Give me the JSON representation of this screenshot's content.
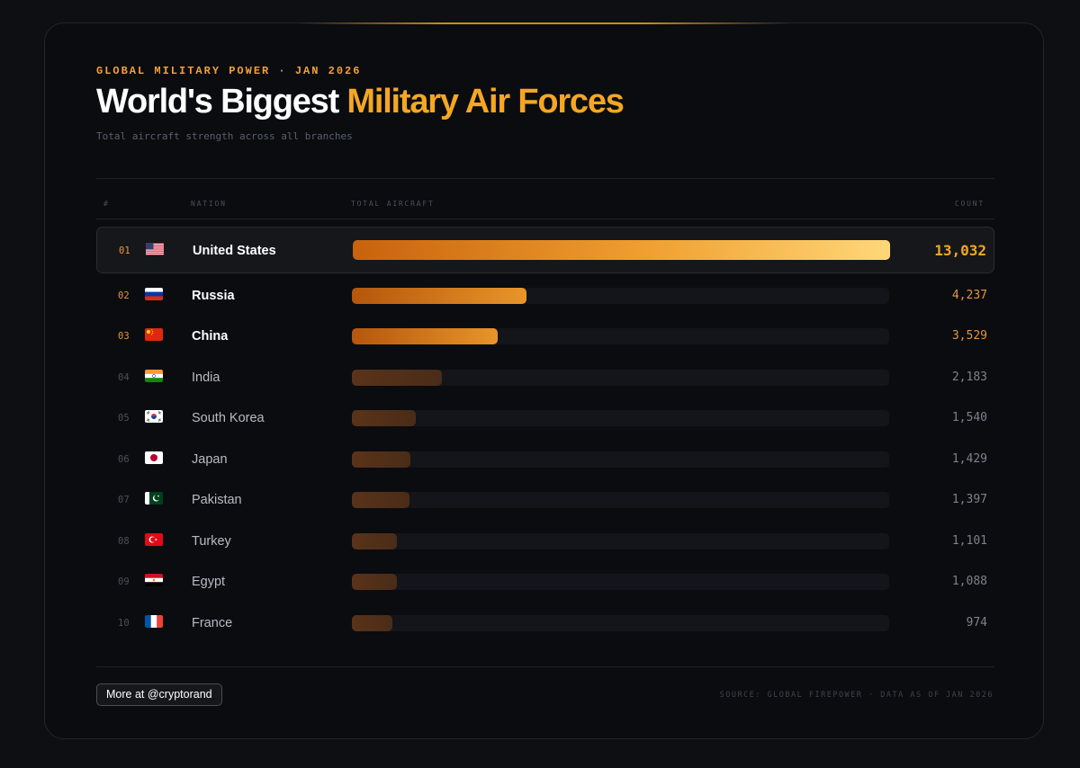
{
  "header": {
    "eyebrow": "GLOBAL MILITARY POWER · JAN 2026",
    "title_main": "World's Biggest",
    "title_accent": "Military Air Forces",
    "subtitle": "Total aircraft strength across all branches"
  },
  "table_headers": {
    "rank": "#",
    "nation": "NATION",
    "total": "TOTAL AIRCRAFT",
    "count": "COUNT"
  },
  "footer": {
    "button_label": "More at @cryptorand",
    "source": "SOURCE: GLOBAL FIREPOWER · DATA AS OF JAN 2026"
  },
  "colors": {
    "accent": "#f5a623",
    "accent_deep": "#c8620d",
    "muted_bar": "#5a3319"
  },
  "chart_data": {
    "type": "bar",
    "orientation": "horizontal",
    "title": "World's Biggest Military Air Forces",
    "subtitle": "Total aircraft strength across all branches",
    "xlabel": "TOTAL AIRCRAFT",
    "ylabel": "NATION",
    "xlim": [
      0,
      13032
    ],
    "rows": [
      {
        "rank": "01",
        "flag": "us-flag-icon",
        "name": "United States",
        "value": 13032,
        "label": "13,032"
      },
      {
        "rank": "02",
        "flag": "russia-flag-icon",
        "name": "Russia",
        "value": 4237,
        "label": "4,237"
      },
      {
        "rank": "03",
        "flag": "china-flag-icon",
        "name": "China",
        "value": 3529,
        "label": "3,529"
      },
      {
        "rank": "04",
        "flag": "india-flag-icon",
        "name": "India",
        "value": 2183,
        "label": "2,183"
      },
      {
        "rank": "05",
        "flag": "south-korea-flag-icon",
        "name": "South Korea",
        "value": 1540,
        "label": "1,540"
      },
      {
        "rank": "06",
        "flag": "japan-flag-icon",
        "name": "Japan",
        "value": 1429,
        "label": "1,429"
      },
      {
        "rank": "07",
        "flag": "pakistan-flag-icon",
        "name": "Pakistan",
        "value": 1397,
        "label": "1,397"
      },
      {
        "rank": "08",
        "flag": "turkey-flag-icon",
        "name": "Turkey",
        "value": 1101,
        "label": "1,101"
      },
      {
        "rank": "09",
        "flag": "egypt-flag-icon",
        "name": "Egypt",
        "value": 1088,
        "label": "1,088"
      },
      {
        "rank": "10",
        "flag": "france-flag-icon",
        "name": "France",
        "value": 974,
        "label": "974"
      }
    ]
  }
}
